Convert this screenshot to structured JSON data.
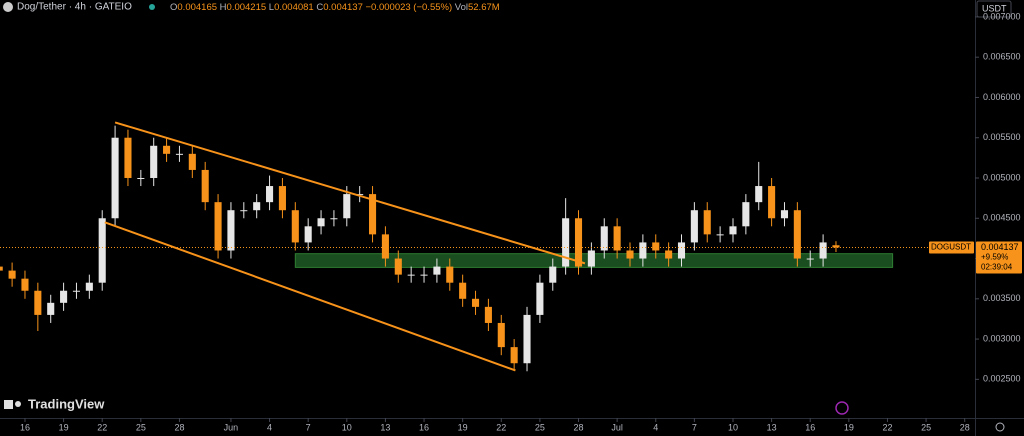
{
  "header": {
    "symbol": "Dog/Tether · 4h · GATEIO",
    "items": [
      "O",
      "0.004165",
      "H",
      "0.004215",
      "L",
      "0.004081",
      "C",
      "0.004137",
      "−0.000023 (−0.55%)",
      "Vol",
      "52.67M"
    ],
    "currency": "USDT",
    "brand": "TradingView"
  },
  "chart_data": {
    "type": "candlestick",
    "up_color": "#e6e6e6",
    "down_color": "#f7931a",
    "x": [
      -2,
      -1,
      0,
      1,
      2,
      3,
      4,
      5,
      6,
      7,
      8,
      9,
      10,
      11,
      12,
      13,
      14,
      15,
      16,
      17,
      18,
      19,
      20,
      21,
      22,
      23,
      24,
      25,
      26,
      27,
      28,
      29,
      30,
      31,
      32,
      33,
      34,
      35,
      36,
      37,
      38,
      39,
      40,
      41,
      42,
      43,
      44,
      45,
      46,
      47,
      48,
      49,
      50,
      51,
      52,
      53,
      54,
      55,
      56,
      57,
      58,
      59,
      60,
      61,
      62,
      63
    ],
    "open": [
      0.0039,
      0.00385,
      0.00375,
      0.0036,
      0.0033,
      0.00345,
      0.0036,
      0.0036,
      0.0037,
      0.0045,
      0.0055,
      0.005,
      0.005,
      0.0054,
      0.0053,
      0.0053,
      0.0051,
      0.0047,
      0.0041,
      0.0046,
      0.0046,
      0.0047,
      0.0049,
      0.0046,
      0.0042,
      0.0044,
      0.0045,
      0.0045,
      0.0048,
      0.0048,
      0.0043,
      0.004,
      0.0038,
      0.0038,
      0.0038,
      0.0039,
      0.0037,
      0.0035,
      0.0034,
      0.0032,
      0.0029,
      0.0027,
      0.0033,
      0.0037,
      0.0039,
      0.0045,
      0.0039,
      0.0041,
      0.0044,
      0.0041,
      0.004,
      0.0042,
      0.0041,
      0.004,
      0.0042,
      0.0046,
      0.0043,
      0.0043,
      0.0044,
      0.0047,
      0.0049,
      0.0045,
      0.0046,
      0.004,
      0.004,
      0.004165
    ],
    "high": [
      0.004,
      0.00395,
      0.00385,
      0.0037,
      0.00355,
      0.0037,
      0.0037,
      0.0038,
      0.0046,
      0.00565,
      0.0056,
      0.0051,
      0.0055,
      0.0055,
      0.0054,
      0.0054,
      0.0052,
      0.0048,
      0.0047,
      0.0047,
      0.0048,
      0.00503,
      0.005,
      0.0047,
      0.0045,
      0.0046,
      0.0046,
      0.0049,
      0.0049,
      0.0049,
      0.0044,
      0.0041,
      0.0039,
      0.0039,
      0.004,
      0.004,
      0.0038,
      0.0036,
      0.0035,
      0.0033,
      0.003,
      0.0034,
      0.0038,
      0.004,
      0.00475,
      0.0046,
      0.0042,
      0.0045,
      0.0045,
      0.0042,
      0.0043,
      0.0043,
      0.0042,
      0.0043,
      0.0047,
      0.0047,
      0.0044,
      0.0045,
      0.0048,
      0.0052,
      0.005,
      0.0047,
      0.0047,
      0.0041,
      0.0043,
      0.004215
    ],
    "low": [
      0.00375,
      0.00365,
      0.0035,
      0.0031,
      0.0032,
      0.00335,
      0.0035,
      0.0035,
      0.0036,
      0.0044,
      0.0049,
      0.0049,
      0.0049,
      0.0052,
      0.0052,
      0.005,
      0.0046,
      0.004,
      0.004,
      0.0045,
      0.0045,
      0.0046,
      0.0045,
      0.0041,
      0.0041,
      0.0043,
      0.0044,
      0.0044,
      0.0047,
      0.0042,
      0.0039,
      0.0037,
      0.0037,
      0.0037,
      0.0037,
      0.0036,
      0.0034,
      0.0033,
      0.0031,
      0.0028,
      0.00262,
      0.0026,
      0.0032,
      0.0036,
      0.0038,
      0.0038,
      0.0038,
      0.004,
      0.004,
      0.0039,
      0.0039,
      0.004,
      0.0039,
      0.0039,
      0.0041,
      0.0042,
      0.0042,
      0.0042,
      0.0043,
      0.0046,
      0.0044,
      0.0044,
      0.0039,
      0.0039,
      0.0039,
      0.004081
    ],
    "close": [
      0.00385,
      0.00375,
      0.0036,
      0.0033,
      0.00345,
      0.0036,
      0.0036,
      0.0037,
      0.0045,
      0.0055,
      0.005,
      0.005,
      0.0054,
      0.0053,
      0.0053,
      0.0051,
      0.0047,
      0.0041,
      0.0046,
      0.0046,
      0.0047,
      0.0049,
      0.0046,
      0.0042,
      0.0044,
      0.0045,
      0.0045,
      0.0048,
      0.0048,
      0.0043,
      0.004,
      0.0038,
      0.0038,
      0.0038,
      0.0039,
      0.0037,
      0.0035,
      0.0034,
      0.0032,
      0.0029,
      0.0027,
      0.0033,
      0.0037,
      0.0039,
      0.0045,
      0.0039,
      0.0041,
      0.0044,
      0.0041,
      0.004,
      0.0042,
      0.0041,
      0.004,
      0.0042,
      0.0046,
      0.0043,
      0.0043,
      0.0044,
      0.0047,
      0.0049,
      0.0045,
      0.0046,
      0.004,
      0.004,
      0.0042,
      0.004137
    ],
    "xlim": [
      -1.94,
      73.8
    ],
    "xticks": [
      {
        "value": 0,
        "label": "16"
      },
      {
        "value": 3,
        "label": "19"
      },
      {
        "value": 6,
        "label": "22"
      },
      {
        "value": 9,
        "label": "25"
      },
      {
        "value": 12,
        "label": "28"
      },
      {
        "value": 16,
        "label": "Jun"
      },
      {
        "value": 19,
        "label": "4"
      },
      {
        "value": 22,
        "label": "7"
      },
      {
        "value": 25,
        "label": "10"
      },
      {
        "value": 28,
        "label": "13"
      },
      {
        "value": 31,
        "label": "16"
      },
      {
        "value": 34,
        "label": "19"
      },
      {
        "value": 37,
        "label": "22"
      },
      {
        "value": 40,
        "label": "25"
      },
      {
        "value": 43,
        "label": "28"
      },
      {
        "value": 46,
        "label": "Jul"
      },
      {
        "value": 49,
        "label": "4"
      },
      {
        "value": 52,
        "label": "7"
      },
      {
        "value": 55,
        "label": "10"
      },
      {
        "value": 58,
        "label": "13"
      },
      {
        "value": 61,
        "label": "16"
      },
      {
        "value": 64,
        "label": "19"
      },
      {
        "value": 67,
        "label": "22"
      },
      {
        "value": 70,
        "label": "25"
      },
      {
        "value": 73,
        "label": "28"
      }
    ],
    "ylim": [
      0.00202,
      0.00721
    ],
    "yticks": [
      {
        "value": 0.0025,
        "label": "0.002500"
      },
      {
        "value": 0.003,
        "label": "0.003000"
      },
      {
        "value": 0.0035,
        "label": "0.003500"
      },
      {
        "value": 0.004,
        "label": "0.004000"
      },
      {
        "value": 0.0045,
        "label": "0.004500"
      },
      {
        "value": 0.005,
        "label": "0.005000"
      },
      {
        "value": 0.0055,
        "label": "0.005500"
      },
      {
        "value": 0.006,
        "label": "0.006000"
      },
      {
        "value": 0.0065,
        "label": "0.006500"
      },
      {
        "value": 0.007,
        "label": "0.007000"
      }
    ],
    "channel_lines": [
      {
        "x": [
          7,
          43.5
        ],
        "y": [
          0.00569,
          0.00394
        ]
      },
      {
        "x": [
          6.2,
          38.1
        ],
        "y": [
          0.00445,
          0.00261
        ]
      }
    ],
    "line_color": "#f7931a",
    "zone": {
      "x": [
        21,
        67.4
      ],
      "y": [
        0.00389,
        0.00406
      ],
      "color": "#1e5b24"
    },
    "last": {
      "symbol": "DOGUSDT",
      "price": 0.004137,
      "change": "+9.59%",
      "countdown": "02:39:04"
    }
  }
}
